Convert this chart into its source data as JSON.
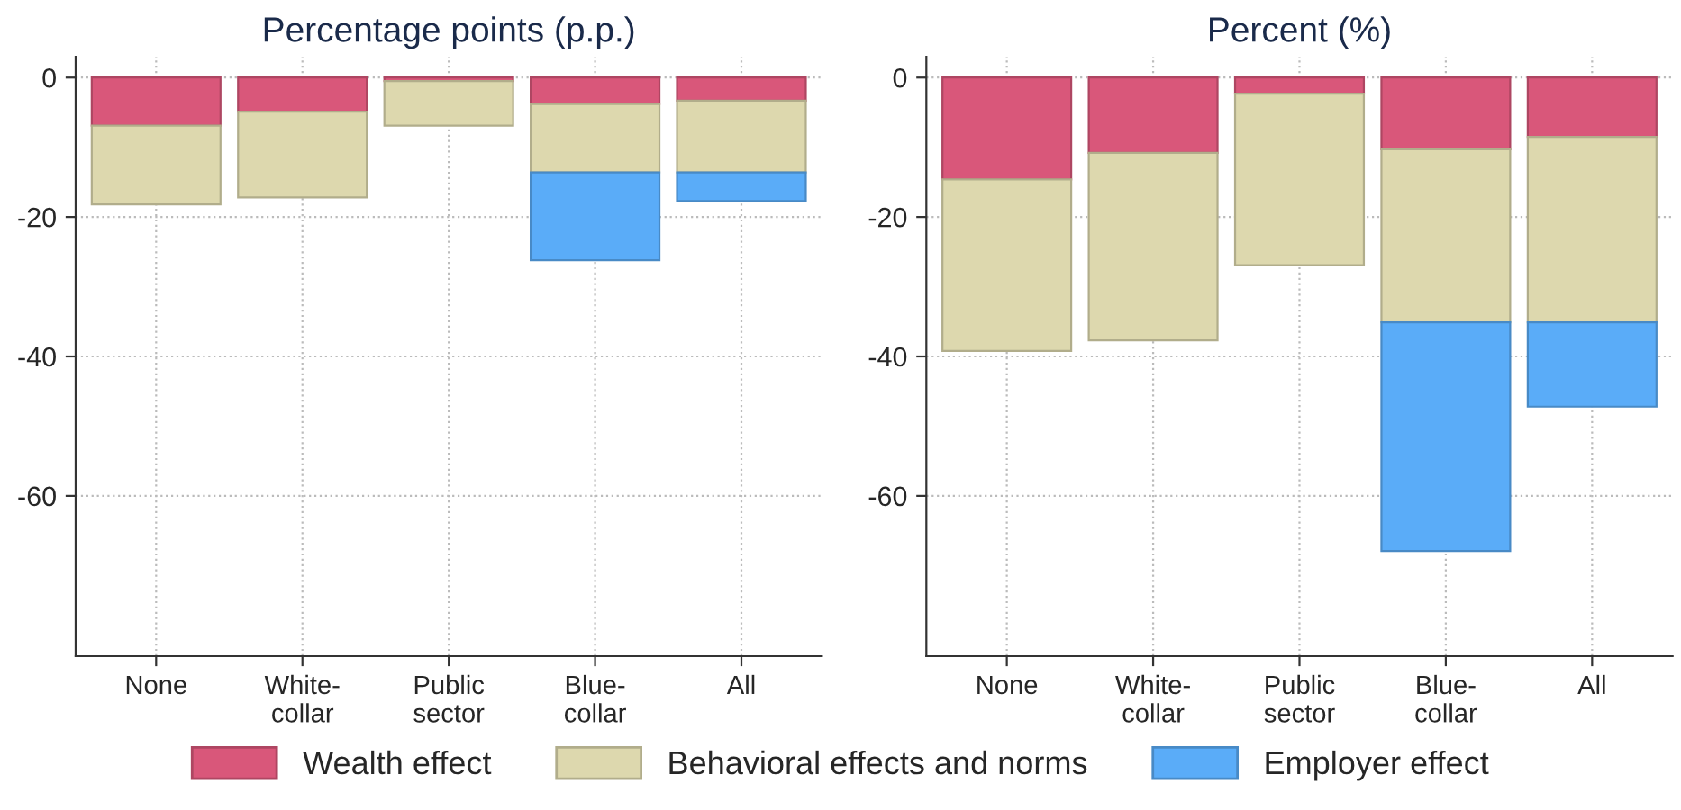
{
  "chart_data": [
    {
      "type": "bar",
      "stacked": true,
      "title": "Percentage points (p.p.)",
      "categories": [
        "None",
        "White-\ncollar",
        "Public\nsector",
        "Blue-\ncollar",
        "All"
      ],
      "ylim": [
        -83,
        3
      ],
      "yticks": [
        0,
        -20,
        -40,
        -60
      ],
      "grid": true,
      "legend": "bottom",
      "series": [
        {
          "name": "Wealth effect",
          "color": "#d9577a",
          "values": [
            -6.9,
            -4.9,
            -0.5,
            -3.8,
            -3.3
          ]
        },
        {
          "name": "Behavioral effects and norms",
          "color": "#ddd8ae",
          "values": [
            -11.3,
            -12.3,
            -6.4,
            -9.8,
            -10.3
          ]
        },
        {
          "name": "Employer effect",
          "color": "#5aacf8",
          "values": [
            null,
            null,
            null,
            -12.6,
            -4.1
          ]
        }
      ]
    },
    {
      "type": "bar",
      "stacked": true,
      "title": "Percent (%)",
      "categories": [
        "None",
        "White-\ncollar",
        "Public\nsector",
        "Blue-\ncollar",
        "All"
      ],
      "ylim": [
        -83,
        3
      ],
      "yticks": [
        0,
        -20,
        -40,
        -60
      ],
      "grid": true,
      "legend": "bottom",
      "series": [
        {
          "name": "Wealth effect",
          "color": "#d9577a",
          "values": [
            -14.6,
            -10.8,
            -2.3,
            -10.3,
            -8.5
          ]
        },
        {
          "name": "Behavioral effects and norms",
          "color": "#ddd8ae",
          "values": [
            -24.6,
            -26.9,
            -24.6,
            -24.8,
            -26.6
          ]
        },
        {
          "name": "Employer effect",
          "color": "#5aacf8",
          "values": [
            null,
            null,
            null,
            -32.8,
            -12.1
          ]
        }
      ]
    }
  ]
}
